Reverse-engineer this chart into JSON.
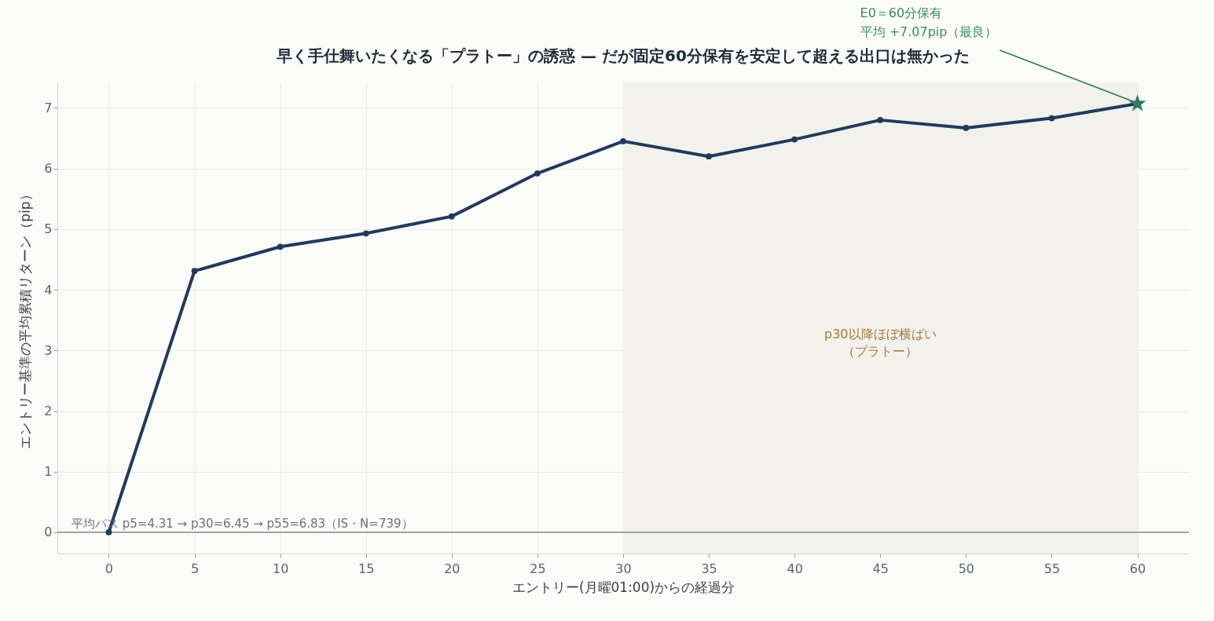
{
  "chart_data": {
    "type": "line",
    "title": "早く手仕舞いたくなる「プラトー」の誘惑 — だが固定60分保有を安定して超える出口は無かった",
    "xlabel": "エントリー(月曜01:00)からの経過分",
    "ylabel": "エントリー基準の平均累積リターン（pip）",
    "x": [
      0,
      5,
      10,
      15,
      20,
      25,
      30,
      35,
      40,
      45,
      50,
      55,
      60
    ],
    "series": [
      {
        "color": "#1f3a5f",
        "marker": "circle",
        "values": [
          0,
          4.31,
          4.71,
          4.93,
          5.21,
          5.92,
          6.45,
          6.2,
          6.48,
          6.8,
          6.67,
          6.83,
          7.07
        ]
      },
      {
        "type": "scatter",
        "color": "#2e7d5b",
        "marker": "star",
        "x": [
          60
        ],
        "values": [
          7.07
        ]
      }
    ],
    "xlim": [
      -3,
      63
    ],
    "ylim": [
      -0.35,
      7.42
    ],
    "xticks": [
      0,
      5,
      10,
      15,
      20,
      25,
      30,
      35,
      40,
      45,
      50,
      55,
      60
    ],
    "yticks": [
      0,
      1,
      2,
      3,
      4,
      5,
      6,
      7
    ],
    "grid": true,
    "line_style": "solid",
    "ref_lines": [
      {
        "axis": "y",
        "value": 0,
        "color": "#8a8a8a"
      }
    ],
    "bands": [
      {
        "axis": "x",
        "from": 30,
        "to": 60,
        "label": "p30以降ほぼ横ばい（プラトー）",
        "color": "#f2f1ec"
      }
    ],
    "annotations": [
      "E0＝60分保有",
      {
        "text": "平均 +7.07pip（最良）",
        "x": 60,
        "y": 7.07
      },
      "平均パス p5=4.31 → p30=6.45 → p55=6.83（IS・N=739）"
    ]
  }
}
